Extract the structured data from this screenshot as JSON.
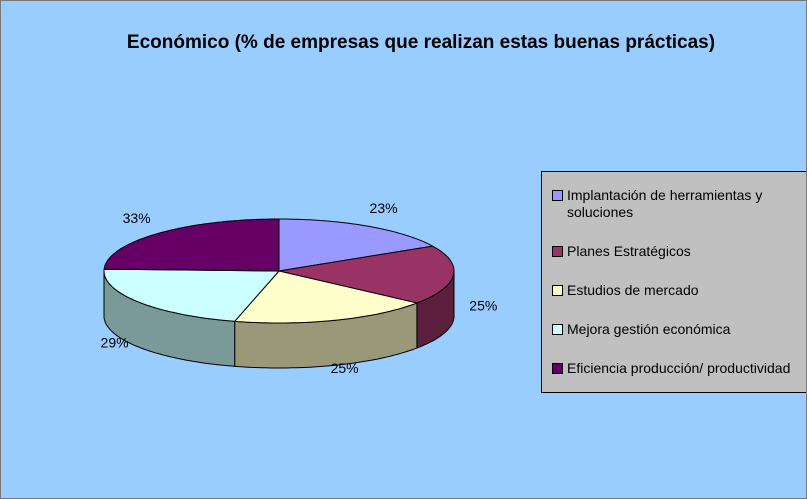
{
  "chart_data": {
    "type": "pie3d",
    "title": "Económico (% de empresas que realizan estas buenas prácticas)",
    "series": [
      {
        "name": "Implantación de herramientas y soluciones",
        "color": "#9999ff",
        "values": [
          23
        ],
        "value_labels": [
          "23%"
        ]
      },
      {
        "name": "Planes Estratégicos",
        "color": "#993366",
        "values": [
          25
        ],
        "value_labels": [
          "25%"
        ]
      },
      {
        "name": "Estudios de mercado",
        "color": "#ffffcc",
        "values": [
          25
        ],
        "value_labels": [
          "25%"
        ]
      },
      {
        "name": "Mejora gestión económica",
        "color": "#ccffff",
        "values": [
          29
        ],
        "value_labels": [
          "29%"
        ]
      },
      {
        "name": "Eficiencia producción/ productividad",
        "color": "#660066",
        "values": [
          33
        ],
        "value_labels": [
          "33%"
        ]
      }
    ],
    "legend": "right"
  }
}
